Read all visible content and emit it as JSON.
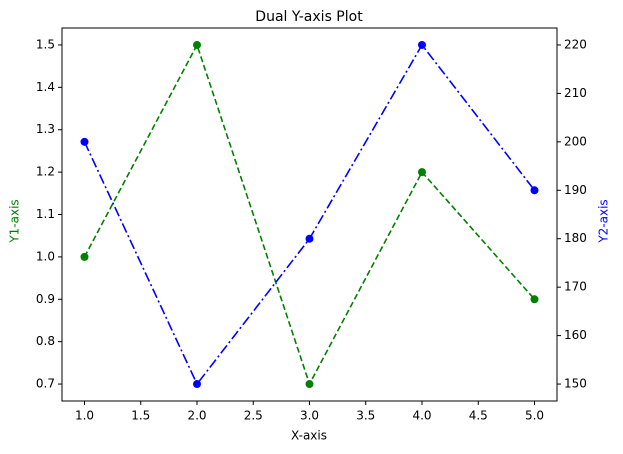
{
  "chart_data": {
    "type": "line",
    "title": "Dual Y-axis Plot",
    "x_label": "X-axis",
    "y_label": "Y1-axis",
    "y2_label": "Y2-axis",
    "x": [
      1,
      2,
      3,
      4,
      5
    ],
    "series": [
      {
        "name": "Y1",
        "color": "#008000",
        "linestyle": "dashed",
        "values": [
          1.0,
          1.5,
          0.7,
          1.2,
          0.9
        ]
      },
      {
        "name": "Y2",
        "color": "#0000ff",
        "linestyle": "dashdot",
        "axis": "y2",
        "values": [
          200,
          150,
          180,
          220,
          190
        ]
      }
    ],
    "xlim": [
      0.8,
      5.2
    ],
    "xticks": [
      {
        "value": 1,
        "label": "1.0"
      },
      {
        "value": 1.5,
        "label": "1.5"
      },
      {
        "value": 2,
        "label": "2.0"
      },
      {
        "value": 2.5,
        "label": "2.5"
      },
      {
        "value": 3,
        "label": "3.0"
      },
      {
        "value": 3.5,
        "label": "3.5"
      },
      {
        "value": 4,
        "label": "4.0"
      },
      {
        "value": 4.5,
        "label": "4.5"
      },
      {
        "value": 5,
        "label": "5.0"
      }
    ],
    "ylim": [
      0.66,
      1.54
    ],
    "yticks": [
      0.7,
      0.8,
      0.9,
      {
        "value": 1,
        "label": "1.0"
      },
      1.1,
      1.2,
      1.3,
      1.4,
      1.5
    ],
    "y2lim": [
      146.5,
      223.5
    ],
    "y2ticks": [
      150,
      160,
      170,
      180,
      190,
      200,
      210,
      220
    ]
  }
}
